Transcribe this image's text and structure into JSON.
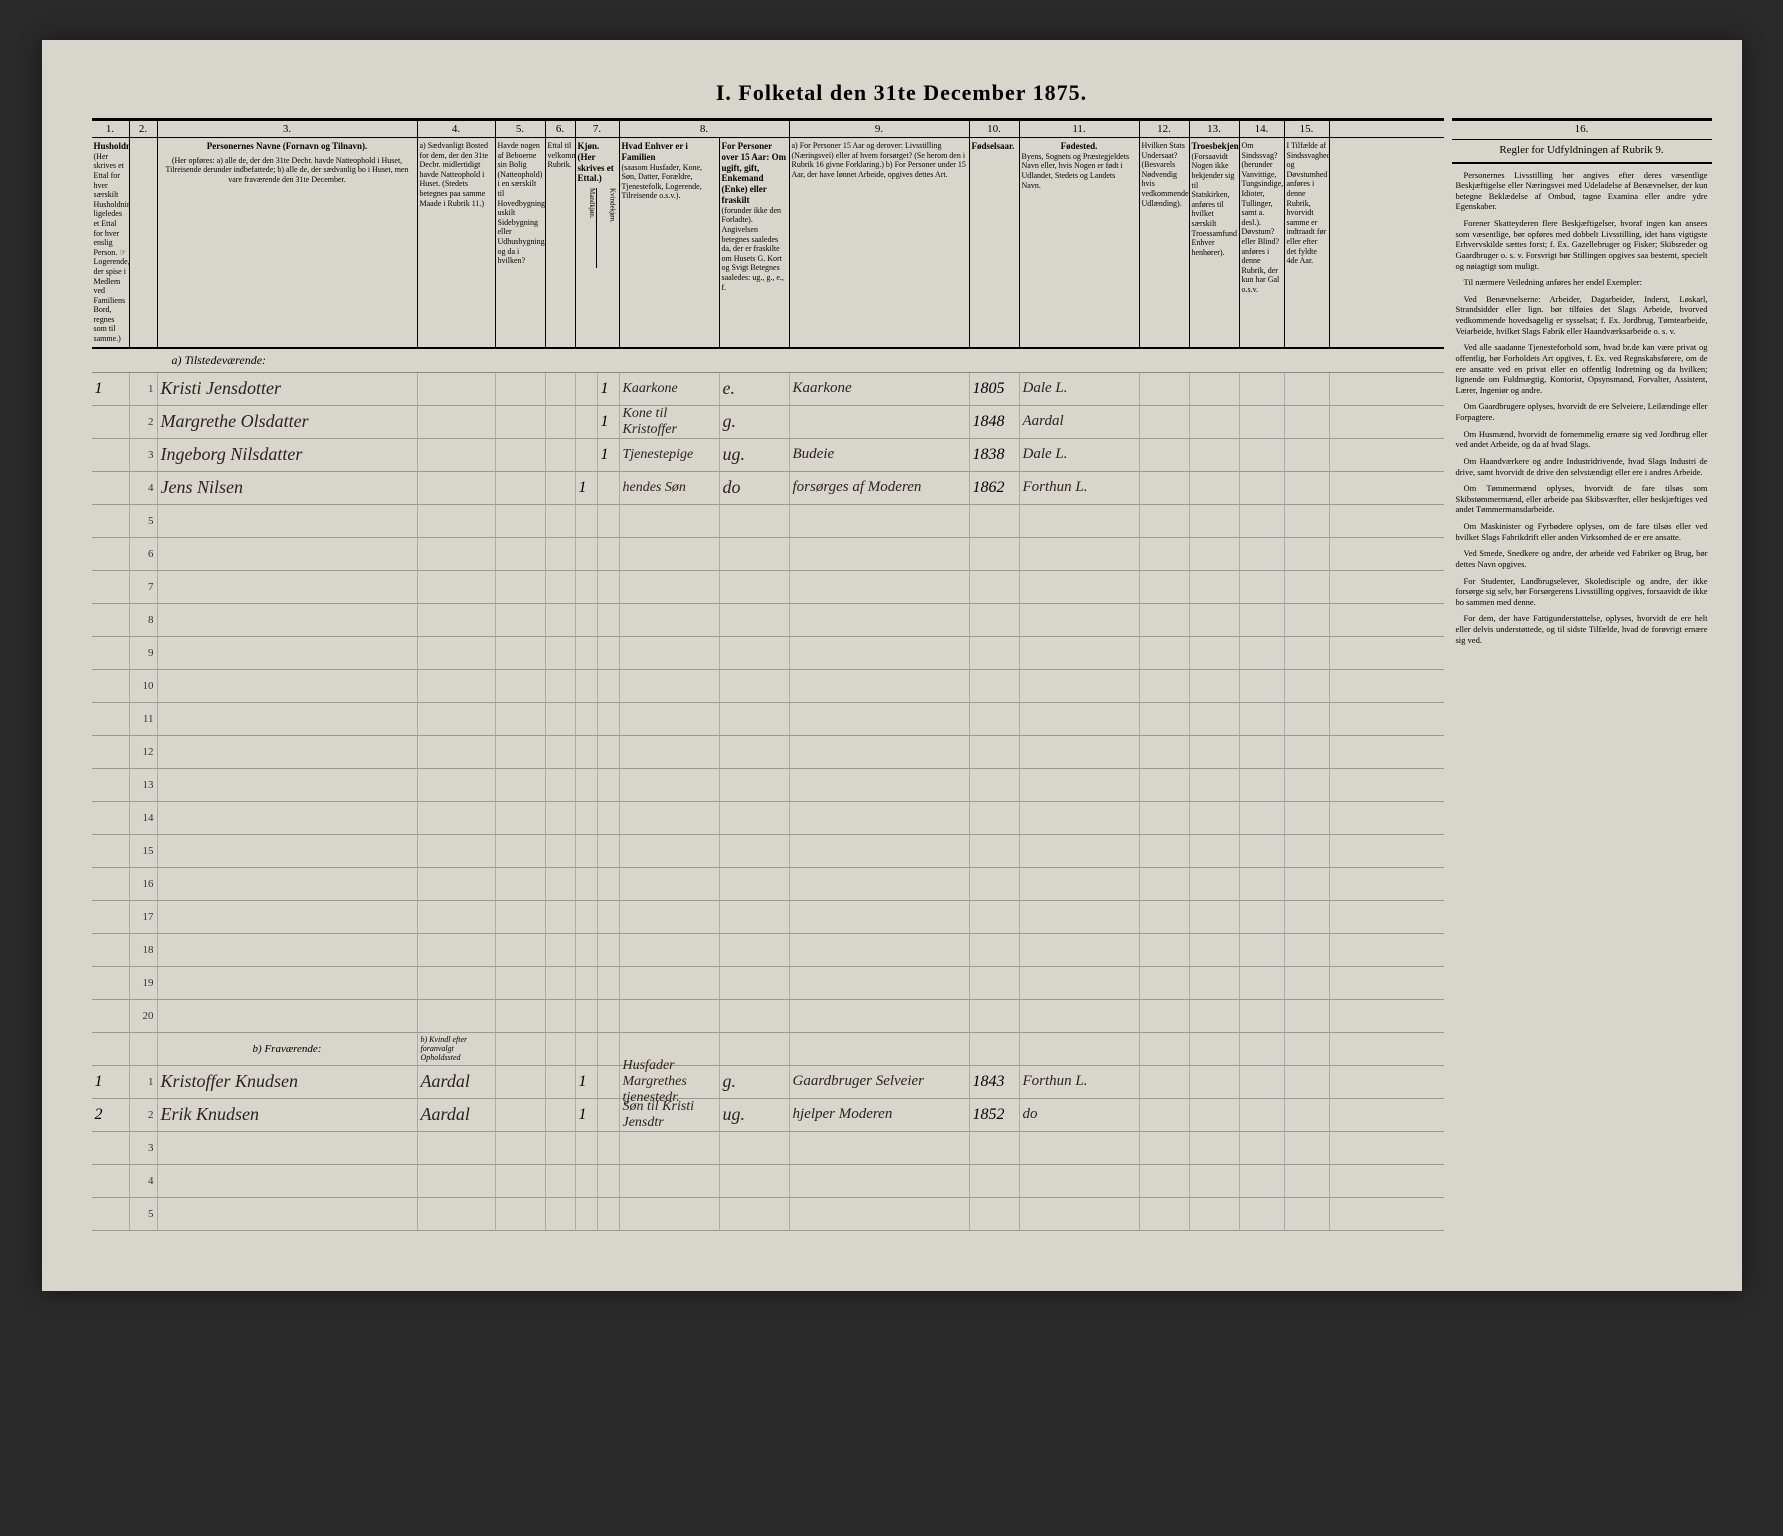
{
  "title": "I. Folketal den 31te December 1875.",
  "column_numbers": [
    "1.",
    "2.",
    "3.",
    "4.",
    "5.",
    "6.",
    "7.",
    "8.",
    "9.",
    "10.",
    "11.",
    "12.",
    "13.",
    "14.",
    "15.",
    "16."
  ],
  "headers": {
    "c1": "Husholdninger.",
    "c1_sub": "(Her skrives et Ettal for hver særskilt Husholdning; ligeledes et Ettal for hver enslig Person. ☞ Logerende, der spise i Medlem ved Familiens Bord, regnes som til samme.)",
    "c3_title": "Personernes Navne (Fornavn og Tilnavn).",
    "c3_sub": "(Her opføres: a) alle de, der den 31te Decbr. havde Natteophold i Huset, Tilreisende derunder indbefattede; b) alle de, der sædvanlig bo i Huset, men vare fraværende den 31te December.",
    "c4": "a) Sædvanligt Bosted for dem, der den 31te Decbr. midlertidigt havde Natteophold i Huset. (Stedets betegnes paa samme Maade i Rubrik 11.)",
    "c5": "Havde nogen af Beboerne sin Bolig (Natteophold) i en særskilt til Hovedbygningen uskilt Sidebygning eller Udhusbygning; og da i hvilken?",
    "c6": "Ettal til velkommende Rubrik.",
    "c7": "Kjøn. (Her skrives et Ettal.)",
    "c7_m": "Mandkjøn.",
    "c7_k": "Kvindekjøn.",
    "c8_title": "Hvad Enhver er i Familien",
    "c8_sub": "(saasom Husfader, Kone, Søn, Datter, Forældre, Tjenestefolk, Logerende, Tilreisende o.s.v.).",
    "c8b_title": "For Personer over 15 Aar: Om ugift, gift, Enkemand (Enke) eller fraskilt",
    "c8b_sub": "(forunder ikke den Forladte). Angivelsen betegnes saaledes da, der er fraskilte om Husets G. Kort og Svigt Betegnes saaledes: ug., g., e., f.",
    "c9_title": "a) For Personer 15 Aar og derover: Livsstilling (Næringsvei) eller af hvem forsørget? (Se herom den i Rubrik 16 givne Forklaring.) b) For Personer under 15 Aar, der have lønnet Arbeide, opgives dettes Art.",
    "c10": "Fødselsaar.",
    "c11_title": "Fødested.",
    "c11_sub": "Byens, Sognets og Præstegjeldets Navn eller, hvis Nogen er født i Udlandet, Stedets og Landets Navn.",
    "c12": "Hvilken Stats Undersaat? (Besvarels Nødvendig hvis vedkommende Udlænding).",
    "c13_title": "Troesbekjendelse.",
    "c13_sub": "(Forsaavidt Nogen ikke bekjender sig til Statskirken, anføres til hvilket særskilt Troessamfund Enhver henhører).",
    "c14_title": "Om Sindssvag? (herunder Vanvittige, Tungsindige, Idioter, Tullinger, samt a. desl.). Døvstum? eller Blind? anføres i denne Rubrik, der kun har Gal o.s.v.",
    "c15_title": "I Tilfælde af Sindssvaghed og Døvstumhed anføres i denne Rubrik, hvorvidt samme er indtraadt før eller efter det fyldte 4de Aar.",
    "c16_title": "Regler for Udfyldningen af Rubrik 9."
  },
  "section_a": "a) Tilstedeværende:",
  "section_b": "b) Fraværende:",
  "location_abbr": "Dale L.",
  "rows_a": [
    {
      "n": "1",
      "name": "Kristi Jensdotter",
      "m": "",
      "k": "1",
      "fam": "Kaarkone",
      "stat": "e.",
      "liv": "Kaarkone",
      "aar": "1805",
      "sted": "Dale L."
    },
    {
      "n": "",
      "name": "Margrethe Olsdatter",
      "m": "",
      "k": "1",
      "fam": "Kone til Kristoffer",
      "stat": "g.",
      "liv": "",
      "aar": "1848",
      "sted": "Aardal"
    },
    {
      "n": "",
      "name": "Ingeborg Nilsdatter",
      "m": "",
      "k": "1",
      "fam": "Tjenestepige",
      "stat": "ug.",
      "liv": "Budeie",
      "aar": "1838",
      "sted": "Dale L."
    },
    {
      "n": "",
      "name": "Jens Nilsen",
      "m": "1",
      "k": "",
      "fam": "hendes Søn",
      "stat": "do",
      "liv": "forsørges af Moderen",
      "aar": "1862",
      "sted": "Forthun L."
    }
  ],
  "rows_b": [
    {
      "n": "1",
      "name": "Kristoffer Knudsen",
      "bosted": "Aardal",
      "m": "1",
      "k": "",
      "fam": "Husfader Margrethes tjenestedr.",
      "stat": "g.",
      "liv": "Gaardbruger Selveier",
      "aar": "1843",
      "sted": "Forthun L."
    },
    {
      "n": "2",
      "name": "Erik Knudsen",
      "bosted": "Aardal",
      "m": "1",
      "k": "",
      "fam": "Søn til Kristi Jensdtr",
      "stat": "ug.",
      "liv": "hjelper Moderen",
      "aar": "1852",
      "sted": "do"
    }
  ],
  "b_note": "b) Kvindl efter foranvalgt Opholdssted",
  "empty_rows_a": [
    "5",
    "6",
    "7",
    "8",
    "9",
    "10",
    "11",
    "12",
    "13",
    "14",
    "15",
    "16",
    "17",
    "18",
    "19",
    "20"
  ],
  "empty_rows_b": [
    "3",
    "4",
    "5"
  ],
  "rules": [
    "Personernes Livsstilling bør angives efter deres væsentlige Beskjæftigelse eller Næringsvei med Udeladelse af Benævnelser, der kun betegne Beklædelse af Ombud, tagne Examina eller andre ydre Egenskaber.",
    "Forener Skatteyderen flere Beskjæftigelser, hvoraf ingen kan ansees som væsentlige, bør opføres med dobbelt Livsstilling, idet hans vigtigste Erhvervskilde sættes forst; f. Ex. Gazellebruger og Fisker; Skibsreder og Gaardbruger o. s. v. Forsvrigt bør Stillingen opgives saa bestemt, specielt og nøiagtigt som muligt.",
    "Til nærmere Veiledning anføres her endel Exempler:",
    "Ved Benævnelserne: Arbeider, Dagarbeider, Inderst, Løskarl, Strandsidder eller lign. bør tilføies det Slags Arbeide, hvorved vedkommende hovedsagelig er sysselsat; f. Ex. Jordbrug, Tømtearbeide, Veiarbeide, hvilket Slags Fabrik eller Haandværksarbeide o. s. v.",
    "Ved alle saadanne Tjenesteforhold som, hvad br.de kan være privat og offentlig, bør Forholdets Art opgives, f. Ex. ved Regnskabsførere, om de ere ansatte ved en privat eller en offentlig Indretning og da hvilken; lignende om Fuldmægtig, Kontorist, Opsynsmand, Forvalter, Assistent, Lærer, Ingeniør og andre.",
    "Om Gaardbrugere oplyses, hvorvidt de ere Selveiere, Leilændinge eller Forpagtere.",
    "Om Husmænd, hvorvidt de fornemmelig ernære sig ved Jordbrug eller ved andet Arbeide, og da af hvad Slags.",
    "Om Haandværkere og andre Industridrivende, hvad Slags Industri de drive, samt hvorvidt de drive den selvstændigt eller ere i andres Arbeide.",
    "Om Tømmermænd oplyses, hvorvidt de fare tilsøs som Skibstømmermænd, eller arbeide paa Skibsværfter, eller beskjæftiges ved andet Tømmermansdarbeide.",
    "Om Maskinister og Fyrbødere oplyses, om de fare tilsøs eller ved hvilket Slags Fabrikdrift eller anden Virksomhed de er ere ansatte.",
    "Ved Smede, Snedkere og andre, der arbeide ved Fabriker og Brug, bør dettes Navn opgives.",
    "For Studenter, Landbrugselever, Skoledisciple og andre, der ikke forsørge sig selv, bør Forsørgerens Livsstilling opgives, forsaavidt de ikke bo sammen med denne.",
    "For dem, der have Fattigunderstøttelse, oplyses, hvorvidt de ere helt eller delvis understøttede, og til sidste Tilfælde, hvad de forøvrigt ernære sig ved."
  ]
}
